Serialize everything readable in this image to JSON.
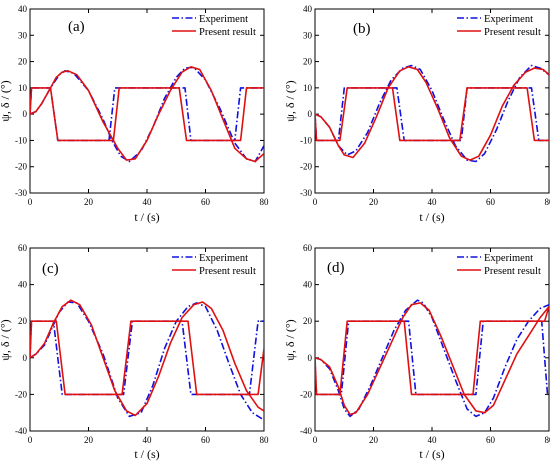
{
  "colors": {
    "experiment": "#1010e0",
    "present": "#e01010",
    "axis": "#000000"
  },
  "chart_data": [
    {
      "type": "line",
      "panel_label": "(a)",
      "xlabel": "t / (s)",
      "ylabel": "ψ, δ / (°)",
      "xlim": [
        0,
        80
      ],
      "ylim": [
        -30,
        40
      ],
      "xticks": [
        "0",
        "20",
        "40",
        "60",
        "80"
      ],
      "yticks": [
        "-30",
        "-20",
        "-10",
        "0",
        "10",
        "20",
        "30",
        "40"
      ],
      "legend": {
        "position": "top-right",
        "entries": [
          "Experiment",
          "Present result"
        ]
      },
      "series": [
        {
          "name": "Experiment",
          "role": "heading",
          "style": "dash-dot",
          "color": "#1010e0",
          "x": [
            0,
            2,
            4,
            7,
            10,
            12,
            15,
            20,
            25,
            28,
            31,
            34,
            38,
            42,
            46,
            50,
            53,
            56,
            60,
            65,
            70,
            74,
            77,
            80
          ],
          "y": [
            0,
            1,
            4,
            10,
            15,
            16.5,
            15.5,
            9,
            -2,
            -10,
            -16,
            -18,
            -14,
            -5,
            6,
            14,
            17.5,
            17.8,
            13,
            2,
            -11,
            -17,
            -18,
            -12
          ]
        },
        {
          "name": "Experiment",
          "role": "rudder",
          "style": "dash-dot",
          "color": "#1010e0",
          "x": [
            0,
            0.5,
            7,
            9.5,
            27,
            29,
            53,
            55,
            70,
            72,
            80
          ],
          "y": [
            0,
            10,
            10,
            -10,
            -10,
            10,
            10,
            -10,
            -10,
            10,
            10
          ]
        },
        {
          "name": "Present result",
          "role": "heading",
          "style": "solid",
          "color": "#e01010",
          "x": [
            0,
            2,
            4,
            7,
            9,
            11,
            13,
            16,
            20,
            25,
            30,
            33,
            36,
            40,
            44,
            48,
            52,
            55,
            58,
            62,
            66,
            70,
            74,
            77,
            80
          ],
          "y": [
            0,
            1,
            4,
            10,
            14,
            16,
            16.5,
            15,
            9,
            -3,
            -13,
            -17.5,
            -17,
            -10,
            0,
            9,
            16,
            18,
            17,
            9,
            -2,
            -13,
            -17,
            -18,
            -15
          ]
        },
        {
          "name": "Present result",
          "role": "rudder",
          "style": "solid",
          "color": "#e01010",
          "x": [
            0,
            0.5,
            7,
            9.5,
            28.5,
            30.5,
            51,
            53.5,
            72,
            74,
            80
          ],
          "y": [
            0,
            10,
            10,
            -10,
            -10,
            10,
            10,
            -10,
            -10,
            10,
            10
          ]
        }
      ]
    },
    {
      "type": "line",
      "panel_label": "(b)",
      "xlabel": "t / (s)",
      "ylabel": "ψ, δ / (°)",
      "xlim": [
        0,
        80
      ],
      "ylim": [
        -30,
        40
      ],
      "xticks": [
        "0",
        "20",
        "40",
        "60",
        "80"
      ],
      "yticks": [
        "-30",
        "-20",
        "-10",
        "0",
        "10",
        "20",
        "30",
        "40"
      ],
      "legend": {
        "position": "top-right",
        "entries": [
          "Experiment",
          "Present result"
        ]
      },
      "series": [
        {
          "name": "Experiment",
          "role": "heading",
          "style": "dash-dot",
          "color": "#1010e0",
          "x": [
            0,
            2,
            5,
            8,
            11,
            14,
            18,
            22,
            26,
            30,
            33,
            36,
            40,
            44,
            48,
            52,
            55,
            58,
            62,
            66,
            70,
            74,
            77,
            80
          ],
          "y": [
            0,
            -1,
            -5,
            -12,
            -15.5,
            -14,
            -7,
            4,
            13,
            17.5,
            18.5,
            17,
            9,
            -2,
            -12,
            -17.5,
            -18,
            -15,
            -6,
            5,
            14,
            18.5,
            17.5,
            15
          ]
        },
        {
          "name": "Experiment",
          "role": "rudder",
          "style": "dash-dot",
          "color": "#1010e0",
          "x": [
            0,
            0.5,
            8,
            10,
            28,
            30.5,
            50,
            52,
            74,
            76.5,
            80
          ],
          "y": [
            0,
            -10,
            -10,
            10,
            10,
            -10,
            -10,
            10,
            10,
            -10,
            -10
          ]
        },
        {
          "name": "Present result",
          "role": "heading",
          "style": "solid",
          "color": "#e01010",
          "x": [
            0,
            2,
            5,
            8,
            10,
            13,
            17,
            21,
            25,
            29,
            32,
            35,
            38,
            42,
            46,
            50,
            53,
            56,
            60,
            64,
            68,
            72,
            75,
            78,
            80
          ],
          "y": [
            0,
            -1,
            -5,
            -12,
            -15.5,
            -16.5,
            -11,
            -1,
            10,
            16.5,
            18,
            17,
            12,
            2,
            -9,
            -16,
            -17.5,
            -16,
            -8,
            3,
            11,
            16,
            17.5,
            17,
            15
          ]
        },
        {
          "name": "Present result",
          "role": "rudder",
          "style": "solid",
          "color": "#e01010",
          "x": [
            0,
            0.5,
            8.5,
            11,
            26.5,
            29,
            49.5,
            52,
            72.5,
            75,
            80
          ],
          "y": [
            0,
            -10,
            -10,
            10,
            10,
            -10,
            -10,
            10,
            10,
            -10,
            -10
          ]
        }
      ]
    },
    {
      "type": "line",
      "panel_label": "(c)",
      "xlabel": "t / (s)",
      "ylabel": "ψ, δ / (°)",
      "xlim": [
        0,
        80
      ],
      "ylim": [
        -40,
        60
      ],
      "xticks": [
        "0",
        "20",
        "40",
        "60",
        "80"
      ],
      "yticks": [
        "-40",
        "-20",
        "0",
        "20",
        "40",
        "60"
      ],
      "legend": {
        "position": "top-right",
        "entries": [
          "Experiment",
          "Present result"
        ]
      },
      "series": [
        {
          "name": "Experiment",
          "role": "heading",
          "style": "dash-dot",
          "color": "#1010e0",
          "x": [
            0,
            2,
            5,
            8,
            10,
            13,
            16,
            20,
            25,
            30,
            34,
            38,
            42,
            46,
            50,
            54,
            57,
            60,
            64,
            68,
            72,
            76,
            80
          ],
          "y": [
            0,
            2,
            7,
            18,
            25,
            30.5,
            30,
            20,
            2,
            -22,
            -32,
            -30,
            -15,
            5,
            20,
            28,
            30,
            28,
            15,
            -3,
            -20,
            -30,
            -34
          ]
        },
        {
          "name": "Experiment",
          "role": "rudder",
          "style": "dash-dot",
          "color": "#1010e0",
          "x": [
            0,
            0.5,
            8,
            11,
            32,
            35,
            52,
            55,
            75,
            78,
            80
          ],
          "y": [
            0,
            20,
            20,
            -20,
            -20,
            20,
            20,
            -20,
            -20,
            20,
            20
          ]
        },
        {
          "name": "Present result",
          "role": "heading",
          "style": "solid",
          "color": "#e01010",
          "x": [
            0,
            2,
            5,
            8,
            11,
            14,
            17,
            21,
            25,
            29,
            33,
            36,
            40,
            44,
            48,
            52,
            56,
            59,
            62,
            66,
            70,
            74,
            78,
            80
          ],
          "y": [
            0,
            2,
            8,
            19,
            28,
            31.5,
            29,
            18,
            0,
            -18,
            -29,
            -31.5,
            -25,
            -10,
            8,
            22,
            29,
            30.5,
            27,
            15,
            -3,
            -18,
            -27,
            -29
          ]
        },
        {
          "name": "Present result",
          "role": "rudder",
          "style": "solid",
          "color": "#e01010",
          "x": [
            0,
            0.5,
            9,
            12,
            31.5,
            34.5,
            54,
            57,
            78,
            80
          ],
          "y": [
            0,
            20,
            20,
            -20,
            -20,
            20,
            20,
            -20,
            -20,
            5
          ]
        }
      ]
    },
    {
      "type": "line",
      "panel_label": "(d)",
      "xlabel": "t / (s)",
      "ylabel": "ψ, δ / (°)",
      "xlim": [
        0,
        80
      ],
      "ylim": [
        -40,
        60
      ],
      "xticks": [
        "0",
        "20",
        "40",
        "60",
        "80"
      ],
      "yticks": [
        "-40",
        "-20",
        "0",
        "20",
        "40",
        "60"
      ],
      "legend": {
        "position": "top-right",
        "entries": [
          "Experiment",
          "Present result"
        ]
      },
      "series": [
        {
          "name": "Experiment",
          "role": "heading",
          "style": "dash-dot",
          "color": "#1010e0",
          "x": [
            0,
            2,
            5,
            8,
            10,
            12,
            15,
            19,
            23,
            27,
            31,
            35,
            37,
            40,
            44,
            48,
            52,
            55,
            58,
            61,
            65,
            69,
            73,
            77,
            80
          ],
          "y": [
            0,
            -1,
            -6,
            -18,
            -28,
            -32,
            -28,
            -15,
            0,
            15,
            26,
            31.5,
            30,
            22,
            5,
            -12,
            -28,
            -32,
            -30,
            -22,
            -5,
            10,
            20,
            27,
            29
          ]
        },
        {
          "name": "Experiment",
          "role": "rudder",
          "style": "dash-dot",
          "color": "#1010e0",
          "x": [
            0,
            0.5,
            9,
            11.5,
            32,
            34.5,
            55,
            57.5,
            77.5,
            79.5,
            80
          ],
          "y": [
            0,
            -20,
            -20,
            20,
            20,
            -20,
            -20,
            20,
            20,
            -20,
            -20
          ]
        },
        {
          "name": "Present result",
          "role": "heading",
          "style": "solid",
          "color": "#e01010",
          "x": [
            0,
            2,
            5,
            8,
            10,
            12,
            14,
            18,
            22,
            26,
            30,
            33,
            36,
            39,
            43,
            47,
            51,
            55,
            58,
            61,
            65,
            69,
            73,
            77,
            80
          ],
          "y": [
            0,
            -1,
            -5,
            -16,
            -26,
            -31,
            -30,
            -20,
            -6,
            8,
            22,
            29,
            30,
            26,
            12,
            -4,
            -20,
            -29,
            -30,
            -26,
            -12,
            2,
            12,
            22,
            28
          ]
        },
        {
          "name": "Present result",
          "role": "rudder",
          "style": "solid",
          "color": "#e01010",
          "x": [
            0,
            0.5,
            8.5,
            11,
            30.5,
            33,
            54,
            56.5,
            78.5,
            80
          ],
          "y": [
            0,
            -20,
            -20,
            20,
            20,
            -20,
            -20,
            20,
            20,
            28
          ]
        }
      ]
    }
  ]
}
